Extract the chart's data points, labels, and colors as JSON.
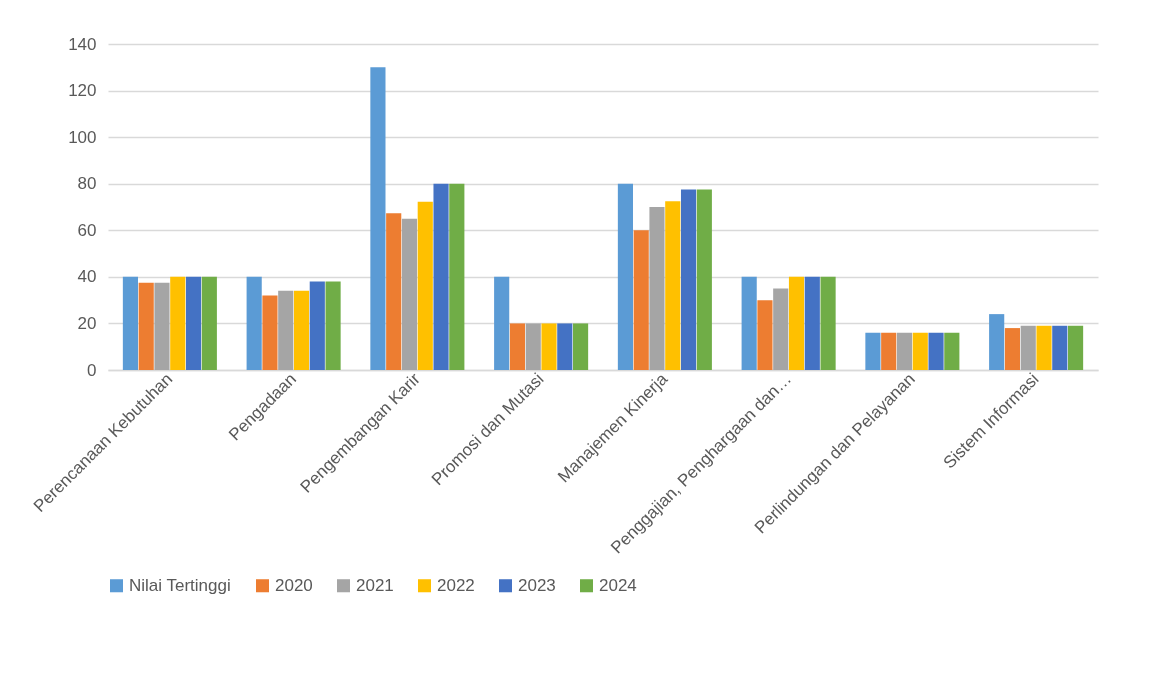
{
  "chart_data": {
    "type": "bar",
    "categories": [
      "Perencanaan Kebutuhan",
      "Pengadaan",
      "Pengembangan Karir",
      "Promosi dan Mutasi",
      "Manajemen Kinerja",
      "Penggajian, Penghargaan dan…",
      "Perlindungan dan Pelayanan",
      "Sistem Informasi"
    ],
    "series": [
      {
        "name": "Nilai Tertinggi",
        "color": "#5b9bd5",
        "values": [
          40,
          40,
          130,
          40,
          80,
          40,
          16,
          24
        ]
      },
      {
        "name": "2020",
        "color": "#ed7d31",
        "values": [
          37.5,
          32,
          67.3,
          20,
          60,
          30,
          16,
          18
        ]
      },
      {
        "name": "2021",
        "color": "#a5a5a5",
        "values": [
          37.5,
          34,
          65,
          20,
          70,
          35,
          16,
          19
        ]
      },
      {
        "name": "2022",
        "color": "#ffc000",
        "values": [
          40,
          34,
          72.3,
          20,
          72.5,
          40,
          16,
          19
        ]
      },
      {
        "name": "2023",
        "color": "#4472c4",
        "values": [
          40,
          38,
          80,
          20,
          77.5,
          40,
          16,
          19
        ]
      },
      {
        "name": "2024",
        "color": "#70ad47",
        "values": [
          40,
          38,
          80,
          20,
          77.5,
          40,
          16,
          19
        ]
      }
    ],
    "ylim": [
      0,
      140
    ],
    "yticks": [
      0,
      20,
      40,
      60,
      80,
      100,
      120,
      140
    ],
    "grid": "y",
    "legend": "bottom"
  }
}
